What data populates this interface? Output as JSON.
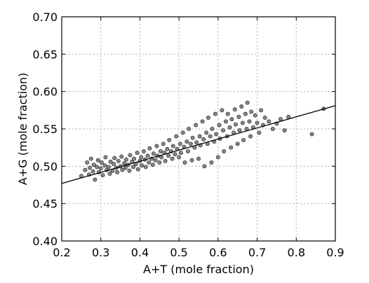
{
  "chart_data": {
    "type": "scatter",
    "xlabel": "A+T (mole fraction)",
    "ylabel": "A+G (mole fraction)",
    "xlim": [
      0.2,
      0.9
    ],
    "ylim": [
      0.4,
      0.7
    ],
    "x_ticks": [
      "0.2",
      "0.3",
      "0.4",
      "0.5",
      "0.6",
      "0.7",
      "0.8",
      "0.9"
    ],
    "y_ticks": [
      "0.40",
      "0.45",
      "0.50",
      "0.55",
      "0.60",
      "0.65",
      "0.70"
    ],
    "grid": true,
    "fit_line": {
      "x": [
        0.2,
        0.9
      ],
      "y": [
        0.477,
        0.581
      ]
    },
    "series": [
      {
        "marker_color": "#888888",
        "points": [
          [
            0.25,
            0.487
          ],
          [
            0.26,
            0.495
          ],
          [
            0.265,
            0.505
          ],
          [
            0.27,
            0.489
          ],
          [
            0.272,
            0.498
          ],
          [
            0.275,
            0.51
          ],
          [
            0.28,
            0.493
          ],
          [
            0.282,
            0.502
          ],
          [
            0.285,
            0.482
          ],
          [
            0.29,
            0.499
          ],
          [
            0.293,
            0.508
          ],
          [
            0.295,
            0.492
          ],
          [
            0.3,
            0.497
          ],
          [
            0.302,
            0.505
          ],
          [
            0.305,
            0.488
          ],
          [
            0.31,
            0.501
          ],
          [
            0.312,
            0.512
          ],
          [
            0.315,
            0.495
          ],
          [
            0.32,
            0.499
          ],
          [
            0.323,
            0.49
          ],
          [
            0.325,
            0.506
          ],
          [
            0.33,
            0.494
          ],
          [
            0.333,
            0.503
          ],
          [
            0.335,
            0.511
          ],
          [
            0.34,
            0.498
          ],
          [
            0.342,
            0.492
          ],
          [
            0.345,
            0.507
          ],
          [
            0.35,
            0.5
          ],
          [
            0.353,
            0.513
          ],
          [
            0.355,
            0.495
          ],
          [
            0.36,
            0.504
          ],
          [
            0.363,
            0.498
          ],
          [
            0.365,
            0.509
          ],
          [
            0.37,
            0.502
          ],
          [
            0.373,
            0.494
          ],
          [
            0.375,
            0.515
          ],
          [
            0.38,
            0.506
          ],
          [
            0.383,
            0.499
          ],
          [
            0.385,
            0.51
          ],
          [
            0.39,
            0.503
          ],
          [
            0.393,
            0.518
          ],
          [
            0.395,
            0.496
          ],
          [
            0.4,
            0.507
          ],
          [
            0.403,
            0.512
          ],
          [
            0.405,
            0.501
          ],
          [
            0.41,
            0.52
          ],
          [
            0.413,
            0.509
          ],
          [
            0.415,
            0.499
          ],
          [
            0.42,
            0.514
          ],
          [
            0.423,
            0.505
          ],
          [
            0.425,
            0.524
          ],
          [
            0.43,
            0.51
          ],
          [
            0.433,
            0.502
          ],
          [
            0.435,
            0.517
          ],
          [
            0.44,
            0.508
          ],
          [
            0.443,
            0.527
          ],
          [
            0.445,
            0.514
          ],
          [
            0.45,
            0.505
          ],
          [
            0.453,
            0.52
          ],
          [
            0.455,
            0.512
          ],
          [
            0.46,
            0.53
          ],
          [
            0.463,
            0.518
          ],
          [
            0.465,
            0.507
          ],
          [
            0.47,
            0.523
          ],
          [
            0.473,
            0.514
          ],
          [
            0.475,
            0.535
          ],
          [
            0.48,
            0.52
          ],
          [
            0.483,
            0.51
          ],
          [
            0.485,
            0.527
          ],
          [
            0.49,
            0.516
          ],
          [
            0.493,
            0.54
          ],
          [
            0.495,
            0.523
          ],
          [
            0.5,
            0.512
          ],
          [
            0.503,
            0.53
          ],
          [
            0.505,
            0.518
          ],
          [
            0.51,
            0.545
          ],
          [
            0.513,
            0.526
          ],
          [
            0.515,
            0.505
          ],
          [
            0.52,
            0.533
          ],
          [
            0.523,
            0.52
          ],
          [
            0.525,
            0.55
          ],
          [
            0.53,
            0.53
          ],
          [
            0.533,
            0.508
          ],
          [
            0.535,
            0.538
          ],
          [
            0.54,
            0.525
          ],
          [
            0.543,
            0.555
          ],
          [
            0.545,
            0.532
          ],
          [
            0.55,
            0.51
          ],
          [
            0.553,
            0.54
          ],
          [
            0.555,
            0.528
          ],
          [
            0.56,
            0.56
          ],
          [
            0.563,
            0.536
          ],
          [
            0.565,
            0.5
          ],
          [
            0.57,
            0.545
          ],
          [
            0.573,
            0.53
          ],
          [
            0.575,
            0.565
          ],
          [
            0.58,
            0.54
          ],
          [
            0.583,
            0.505
          ],
          [
            0.585,
            0.55
          ],
          [
            0.59,
            0.533
          ],
          [
            0.593,
            0.57
          ],
          [
            0.595,
            0.543
          ],
          [
            0.6,
            0.512
          ],
          [
            0.603,
            0.555
          ],
          [
            0.605,
            0.537
          ],
          [
            0.61,
            0.575
          ],
          [
            0.613,
            0.548
          ],
          [
            0.615,
            0.52
          ],
          [
            0.62,
            0.56
          ],
          [
            0.623,
            0.54
          ],
          [
            0.625,
            0.57
          ],
          [
            0.63,
            0.552
          ],
          [
            0.633,
            0.525
          ],
          [
            0.635,
            0.563
          ],
          [
            0.64,
            0.545
          ],
          [
            0.643,
            0.576
          ],
          [
            0.645,
            0.556
          ],
          [
            0.65,
            0.53
          ],
          [
            0.653,
            0.566
          ],
          [
            0.655,
            0.548
          ],
          [
            0.66,
            0.58
          ],
          [
            0.663,
            0.558
          ],
          [
            0.665,
            0.535
          ],
          [
            0.67,
            0.57
          ],
          [
            0.673,
            0.55
          ],
          [
            0.675,
            0.585
          ],
          [
            0.68,
            0.56
          ],
          [
            0.683,
            0.54
          ],
          [
            0.685,
            0.573
          ],
          [
            0.69,
            0.552
          ],
          [
            0.695,
            0.568
          ],
          [
            0.7,
            0.558
          ],
          [
            0.705,
            0.545
          ],
          [
            0.71,
            0.575
          ],
          [
            0.715,
            0.555
          ],
          [
            0.72,
            0.565
          ],
          [
            0.73,
            0.56
          ],
          [
            0.74,
            0.55
          ],
          [
            0.75,
            0.557
          ],
          [
            0.76,
            0.563
          ],
          [
            0.77,
            0.548
          ],
          [
            0.78,
            0.566
          ],
          [
            0.84,
            0.543
          ],
          [
            0.87,
            0.577
          ]
        ]
      }
    ]
  }
}
